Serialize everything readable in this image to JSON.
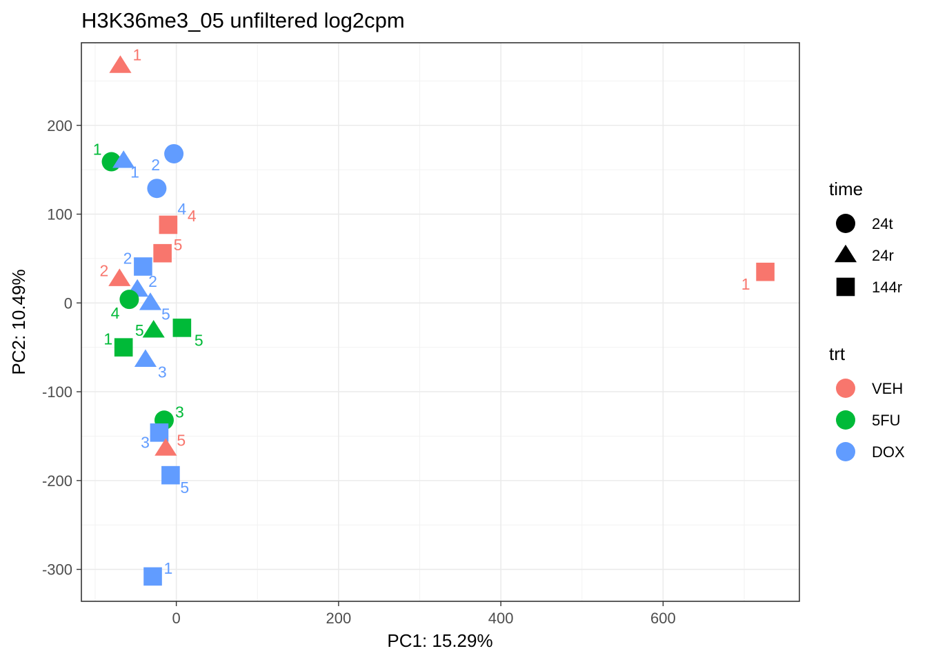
{
  "chart_data": {
    "type": "scatter",
    "title": "H3K36me3_05 unfiltered log2cpm",
    "xlabel": "PC1: 15.29%",
    "ylabel": "PC2: 10.49%",
    "xlim": [
      -117,
      768
    ],
    "ylim": [
      -336,
      293
    ],
    "xticks": [
      0,
      200,
      400,
      600
    ],
    "yticks": [
      -300,
      -200,
      -100,
      0,
      100,
      200
    ],
    "grid": true,
    "legend_placement": "right",
    "legend": {
      "shape_title": "time",
      "shape_items": [
        {
          "label": "24t",
          "shape": "circle"
        },
        {
          "label": "24r",
          "shape": "triangle"
        },
        {
          "label": "144r",
          "shape": "square"
        }
      ],
      "color_title": "trt",
      "color_items": [
        {
          "label": "VEH",
          "color": "#F8766D"
        },
        {
          "label": "5FU",
          "color": "#00BA38"
        },
        {
          "label": "DOX",
          "color": "#619CFF"
        }
      ]
    },
    "points": [
      {
        "trt": "VEH",
        "time": "24r",
        "label": "1",
        "x": -69,
        "y": 267
      },
      {
        "trt": "5FU",
        "time": "24t",
        "label": "1",
        "x": -80,
        "y": 159
      },
      {
        "trt": "DOX",
        "time": "24r",
        "label": "1",
        "x": -65,
        "y": 160
      },
      {
        "trt": "DOX",
        "time": "24t",
        "label": "2",
        "x": -3,
        "y": 168
      },
      {
        "trt": "DOX",
        "time": "24t",
        "label": "4",
        "x": -24,
        "y": 129
      },
      {
        "trt": "VEH",
        "time": "144r",
        "label": "4",
        "x": -10,
        "y": 88
      },
      {
        "trt": "VEH",
        "time": "144r",
        "label": "5",
        "x": -17,
        "y": 56
      },
      {
        "trt": "DOX",
        "time": "144r",
        "label": "2",
        "x": -41,
        "y": 41
      },
      {
        "trt": "VEH",
        "time": "24r",
        "label": "2",
        "x": -70,
        "y": 27
      },
      {
        "trt": "DOX",
        "time": "24r",
        "label": "2",
        "x": -48,
        "y": 15
      },
      {
        "trt": "5FU",
        "time": "24t",
        "label": "4",
        "x": -58,
        "y": 4
      },
      {
        "trt": "DOX",
        "time": "24r",
        "label": "5",
        "x": -32,
        "y": 0
      },
      {
        "trt": "5FU",
        "time": "144r",
        "label": "5",
        "x": 7,
        "y": -28
      },
      {
        "trt": "5FU",
        "time": "24r",
        "label": "5",
        "x": -28,
        "y": -31
      },
      {
        "trt": "5FU",
        "time": "144r",
        "label": "1",
        "x": -65,
        "y": -50
      },
      {
        "trt": "DOX",
        "time": "24r",
        "label": "3",
        "x": -38,
        "y": -64
      },
      {
        "trt": "5FU",
        "time": "24t",
        "label": "3",
        "x": -15,
        "y": -132
      },
      {
        "trt": "DOX",
        "time": "144r",
        "label": "3",
        "x": -21,
        "y": -146
      },
      {
        "trt": "VEH",
        "time": "24r",
        "label": "5",
        "x": -13,
        "y": -164
      },
      {
        "trt": "DOX",
        "time": "144r",
        "label": "5",
        "x": -7,
        "y": -194
      },
      {
        "trt": "DOX",
        "time": "144r",
        "label": "1",
        "x": -29,
        "y": -308
      },
      {
        "trt": "VEH",
        "time": "144r",
        "label": "1",
        "x": 726,
        "y": 35
      }
    ]
  }
}
